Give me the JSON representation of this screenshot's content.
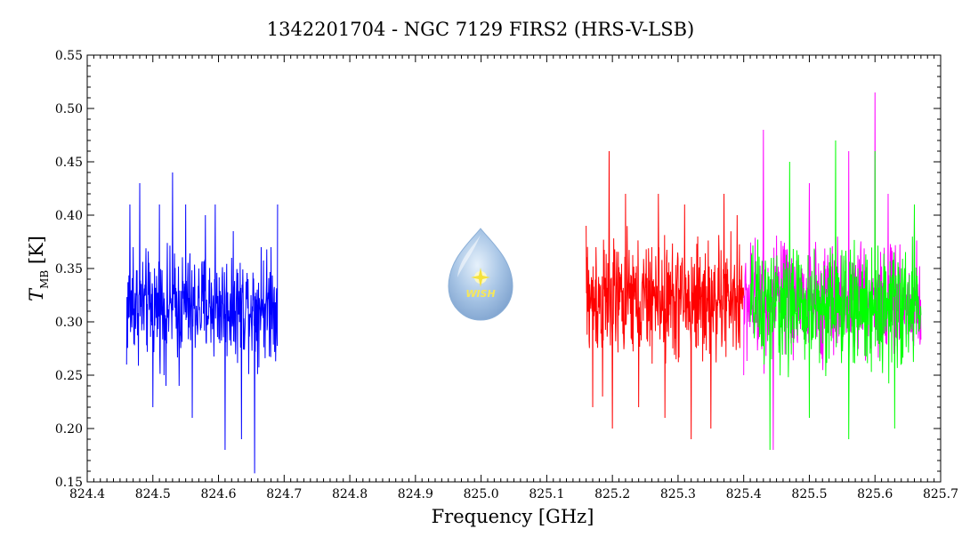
{
  "chart_data": {
    "type": "line",
    "title": "1342201704 - NGC 7129 FIRS2 (HRS-V-LSB)",
    "xlabel": "Frequency [GHz]",
    "ylabel_main": "T",
    "ylabel_sub": "MB",
    "ylabel_unit": "[K]",
    "xlim": [
      824.4,
      825.7
    ],
    "ylim": [
      0.15,
      0.55
    ],
    "x_ticks": [
      "824.4",
      "824.5",
      "824.6",
      "824.7",
      "824.8",
      "824.9",
      "825.0",
      "825.1",
      "825.2",
      "825.3",
      "825.4",
      "825.5",
      "825.6",
      "825.7"
    ],
    "y_ticks": [
      "0.15",
      "0.20",
      "0.25",
      "0.30",
      "0.35",
      "0.40",
      "0.45",
      "0.50",
      "0.55"
    ],
    "grid": false,
    "legend": "none",
    "logo_text": "WISH",
    "series": [
      {
        "color": "#0000ff",
        "x_range": [
          824.46,
          824.69
        ],
        "mean": 0.315,
        "spread": 0.045,
        "min": 0.158,
        "max": 0.44,
        "sample_points": [
          [
            824.46,
            0.26
          ],
          [
            824.465,
            0.41
          ],
          [
            824.47,
            0.37
          ],
          [
            824.48,
            0.43
          ],
          [
            824.5,
            0.22
          ],
          [
            824.51,
            0.41
          ],
          [
            824.52,
            0.24
          ],
          [
            824.53,
            0.44
          ],
          [
            824.54,
            0.24
          ],
          [
            824.55,
            0.41
          ],
          [
            824.56,
            0.21
          ],
          [
            824.58,
            0.4
          ],
          [
            824.595,
            0.41
          ],
          [
            824.61,
            0.18
          ],
          [
            824.62,
            0.36
          ],
          [
            824.635,
            0.19
          ],
          [
            824.645,
            0.34
          ],
          [
            824.655,
            0.158
          ],
          [
            824.665,
            0.37
          ],
          [
            824.68,
            0.37
          ],
          [
            824.69,
            0.41
          ]
        ]
      },
      {
        "color": "#ff0000",
        "x_range": [
          825.16,
          825.4
        ],
        "mean": 0.32,
        "spread": 0.05,
        "min": 0.19,
        "max": 0.46,
        "sample_points": [
          [
            825.16,
            0.39
          ],
          [
            825.17,
            0.22
          ],
          [
            825.175,
            0.37
          ],
          [
            825.185,
            0.23
          ],
          [
            825.195,
            0.46
          ],
          [
            825.2,
            0.2
          ],
          [
            825.22,
            0.42
          ],
          [
            825.24,
            0.22
          ],
          [
            825.26,
            0.37
          ],
          [
            825.27,
            0.42
          ],
          [
            825.28,
            0.21
          ],
          [
            825.31,
            0.41
          ],
          [
            825.32,
            0.19
          ],
          [
            825.33,
            0.38
          ],
          [
            825.35,
            0.2
          ],
          [
            825.37,
            0.42
          ],
          [
            825.39,
            0.4
          ]
        ]
      },
      {
        "color": "#ff00ff",
        "x_range": [
          825.4,
          825.67
        ],
        "mean": 0.32,
        "spread": 0.05,
        "min": 0.18,
        "max": 0.515,
        "sample_points": [
          [
            825.4,
            0.25
          ],
          [
            825.43,
            0.48
          ],
          [
            825.445,
            0.18
          ],
          [
            825.5,
            0.43
          ],
          [
            825.56,
            0.46
          ],
          [
            825.6,
            0.515
          ],
          [
            825.62,
            0.42
          ],
          [
            825.66,
            0.4
          ]
        ]
      },
      {
        "color": "#00ff00",
        "x_range": [
          825.41,
          825.67
        ],
        "mean": 0.315,
        "spread": 0.05,
        "min": 0.18,
        "max": 0.47,
        "sample_points": [
          [
            825.41,
            0.3
          ],
          [
            825.44,
            0.18
          ],
          [
            825.47,
            0.45
          ],
          [
            825.5,
            0.21
          ],
          [
            825.54,
            0.47
          ],
          [
            825.56,
            0.19
          ],
          [
            825.6,
            0.46
          ],
          [
            825.63,
            0.2
          ],
          [
            825.66,
            0.41
          ]
        ]
      }
    ]
  }
}
